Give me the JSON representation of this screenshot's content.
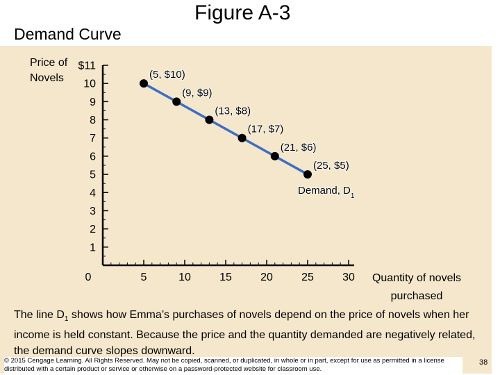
{
  "figure_title": "Figure A-3",
  "subtitle": "Demand Curve",
  "caption": {
    "part1": "The line D",
    "sub": "1",
    "part2": " shows how Emma’s purchases of novels depend on the price of novels when her income is held constant. Because the price and the quantity demanded are negatively related, the demand curve slopes downward."
  },
  "footer": "© 2015 Cengage Learning. All Rights Reserved. May not be copied, scanned, or duplicated, in whole or in part, except for use as permitted in a license distributed with a certain product or service or otherwise on a password-protected website for classroom use.",
  "page_number": "38",
  "colors": {
    "panel": "#f4e7cc",
    "curve": "#3f6ec1",
    "points": "#000000"
  },
  "chart_data": {
    "type": "line",
    "ylabel_lines": [
      "Price of",
      "Novels"
    ],
    "xlabel_lines": [
      "Quantity of novels",
      "purchased"
    ],
    "y_tick_labels": [
      "$11",
      "10",
      "9",
      "8",
      "7",
      "6",
      "5",
      "4",
      "3",
      "2",
      "1"
    ],
    "y_ticks": [
      11,
      10,
      9,
      8,
      7,
      6,
      5,
      4,
      3,
      2,
      1
    ],
    "x_tick_labels": [
      "0",
      "5",
      "10",
      "15",
      "20",
      "25",
      "30"
    ],
    "x_ticks": [
      0,
      5,
      10,
      15,
      20,
      25,
      30
    ],
    "xlim": [
      0,
      30
    ],
    "ylim": [
      0,
      11
    ],
    "grid": false,
    "series": [
      {
        "name": "Demand, D1",
        "x": [
          5,
          9,
          13,
          17,
          21,
          25
        ],
        "y": [
          10,
          9,
          8,
          7,
          6,
          5
        ],
        "labels": [
          "(5, $10)",
          "(9, $9)",
          "(13, $8)",
          "(17, $7)",
          "(21, $6)",
          "(25, $5)"
        ]
      }
    ],
    "curve_label": {
      "text": "Demand, D",
      "sub": "1"
    }
  }
}
